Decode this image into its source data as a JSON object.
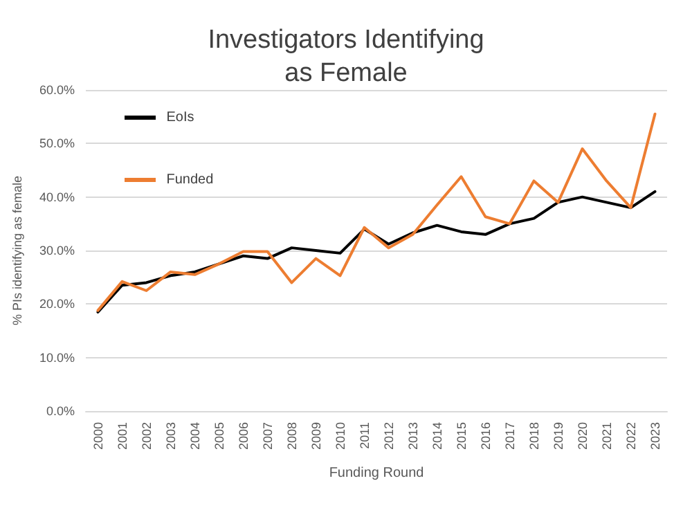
{
  "chart_data": {
    "type": "line",
    "title": "Investigators Identifying\nas Female",
    "xlabel": "Funding Round",
    "ylabel": "% PIs identifying as female",
    "categories": [
      "2000",
      "2001",
      "2002",
      "2003",
      "2004",
      "2005",
      "2006",
      "2007",
      "2008",
      "2009",
      "2010",
      "2011",
      "2012",
      "2013",
      "2014",
      "2015",
      "2016",
      "2017",
      "2018",
      "2019",
      "2020",
      "2021",
      "2022",
      "2023"
    ],
    "series": [
      {
        "name": "EoIs",
        "color": "#000000",
        "values": [
          18.5,
          23.5,
          24,
          25.3,
          26,
          27.5,
          29,
          28.5,
          30.5,
          30,
          29.5,
          34,
          31.2,
          33.3,
          34.7,
          33.5,
          33,
          35,
          36,
          39,
          40,
          39,
          38,
          41
        ]
      },
      {
        "name": "Funded",
        "color": "#ed7d31",
        "values": [
          18.8,
          24.2,
          22.5,
          26,
          25.5,
          27.5,
          29.8,
          29.8,
          24,
          28.5,
          25.3,
          34.3,
          30.5,
          33,
          38.5,
          43.8,
          36.3,
          35,
          43,
          39,
          49,
          43,
          38,
          55.5
        ]
      }
    ],
    "ylim": [
      0,
      60
    ],
    "yticks": [
      {
        "value": 0,
        "label": "0.0%"
      },
      {
        "value": 10,
        "label": "10.0%"
      },
      {
        "value": 20,
        "label": "20.0%"
      },
      {
        "value": 30,
        "label": "30.0%"
      },
      {
        "value": 40,
        "label": "40.0%"
      },
      {
        "value": 50,
        "label": "50.0%"
      },
      {
        "value": 60,
        "label": "60.0%"
      }
    ],
    "grid": "y",
    "legend": "top left",
    "marker": "none",
    "line_style": "solid"
  }
}
